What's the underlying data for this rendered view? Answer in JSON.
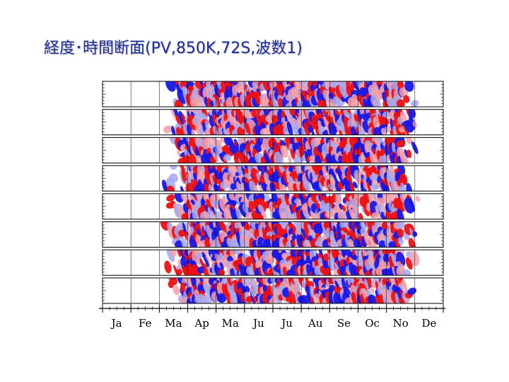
{
  "slide": {
    "title": "経度･時間断面(PV,850K,72S,波数1)"
  },
  "chart_data": {
    "type": "heatmap",
    "title": "経度･時間断面(PV,850K,72S,波数1)",
    "panel_count": 8,
    "x_ticks": [
      "Ja",
      "Fe",
      "Ma",
      "Ap",
      "Ma",
      "Ju",
      "Ju",
      "Au",
      "Se",
      "Oc",
      "No",
      "De"
    ],
    "colors": {
      "positive_strong": "#ee1111",
      "positive_weak": "#f4a0a8",
      "negative_strong": "#1818e8",
      "negative_weak": "#a4a8f0",
      "axis": "#000000"
    },
    "legend": "none"
  }
}
